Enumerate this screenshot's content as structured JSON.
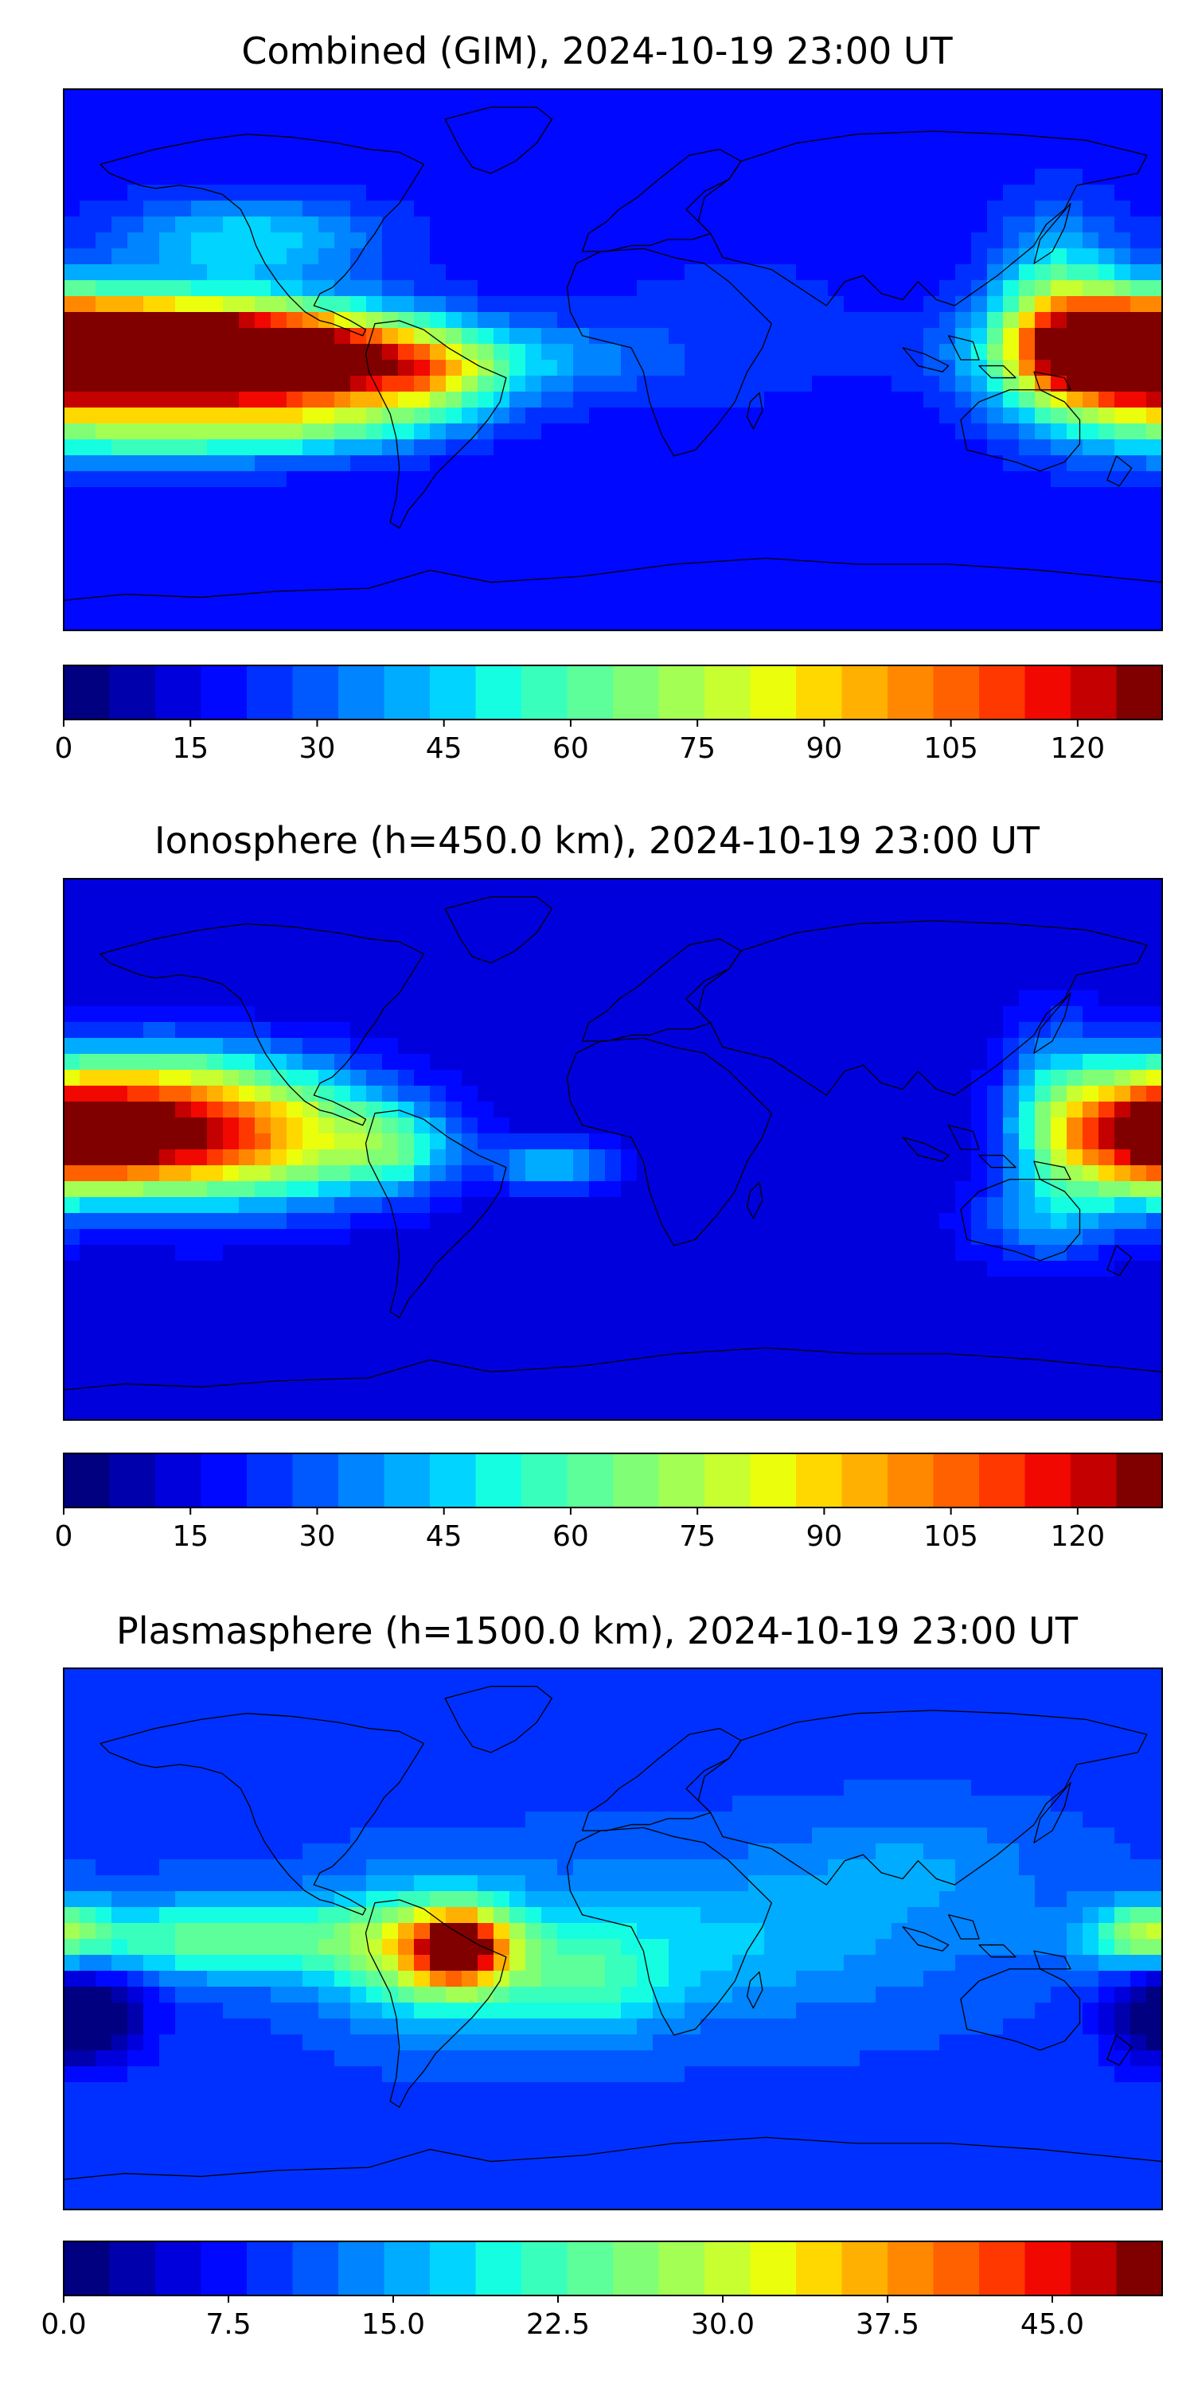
{
  "colormap": [
    "#000080",
    "#0000ad",
    "#0000dd",
    "#0008ff",
    "#0030ff",
    "#0058ff",
    "#0084ff",
    "#00acff",
    "#00d4ff",
    "#15fee1",
    "#39ffbd",
    "#5cff9a",
    "#80ff76",
    "#a3ff53",
    "#c7ff30",
    "#ebff0c",
    "#ffd800",
    "#ffb000",
    "#ff8800",
    "#ff6000",
    "#ff3800",
    "#f10800",
    "#c40000",
    "#800000"
  ],
  "chart_data": [
    {
      "type": "contour-map",
      "title": "Combined (GIM), 2024-10-19 23:00 UT",
      "colorbar": {
        "range": [
          0,
          130
        ],
        "tick_values": [
          0,
          15,
          30,
          45,
          60,
          75,
          90,
          105,
          120
        ],
        "tick_labels": [
          "0",
          "15",
          "30",
          "45",
          "60",
          "75",
          "90",
          "105",
          "120"
        ]
      },
      "background_value": 18,
      "features": [
        {
          "lon": -160,
          "lat": 3,
          "value": 115,
          "sx": 40,
          "sy": 11
        },
        {
          "lon": -140,
          "lat": 0,
          "value": 100,
          "sx": 45,
          "sy": 12
        },
        {
          "lon": -100,
          "lat": 0,
          "value": 82,
          "sx": 30,
          "sy": 11
        },
        {
          "lon": -60,
          "lat": -5,
          "value": 60,
          "sx": 18,
          "sy": 10
        },
        {
          "lon": 170,
          "lat": 2,
          "value": 90,
          "sx": 22,
          "sy": 14
        },
        {
          "lon": 145,
          "lat": 15,
          "value": 58,
          "sx": 14,
          "sy": 22
        },
        {
          "lon": -120,
          "lat": 40,
          "value": 48,
          "sx": 30,
          "sy": 10
        },
        {
          "lon": -155,
          "lat": -25,
          "value": 50,
          "sx": 35,
          "sy": 8
        },
        {
          "lon": -95,
          "lat": -22,
          "value": 45,
          "sx": 28,
          "sy": 7
        },
        {
          "lon": -20,
          "lat": 0,
          "value": 35,
          "sx": 25,
          "sy": 9
        },
        {
          "lon": 40,
          "lat": 10,
          "value": 25,
          "sx": 30,
          "sy": 20
        }
      ]
    },
    {
      "type": "contour-map",
      "title": "Ionosphere  (h=450.0 km), 2024-10-19 23:00 UT",
      "colorbar": {
        "range": [
          0,
          130
        ],
        "tick_values": [
          0,
          15,
          30,
          45,
          60,
          75,
          90,
          105,
          120
        ],
        "tick_labels": [
          "0",
          "15",
          "30",
          "45",
          "60",
          "75",
          "90",
          "105",
          "120"
        ]
      },
      "background_value": 12,
      "features": [
        {
          "lon": -165,
          "lat": 5,
          "value": 86,
          "sx": 28,
          "sy": 12
        },
        {
          "lon": -140,
          "lat": 3,
          "value": 68,
          "sx": 30,
          "sy": 16
        },
        {
          "lon": -150,
          "lat": 25,
          "value": 40,
          "sx": 30,
          "sy": 10
        },
        {
          "lon": -100,
          "lat": 5,
          "value": 55,
          "sx": 25,
          "sy": 15
        },
        {
          "lon": -70,
          "lat": 0,
          "value": 42,
          "sx": 15,
          "sy": 10
        },
        {
          "lon": -20,
          "lat": -5,
          "value": 45,
          "sx": 14,
          "sy": 6
        },
        {
          "lon": 172,
          "lat": 5,
          "value": 75,
          "sx": 18,
          "sy": 15
        },
        {
          "lon": 145,
          "lat": 10,
          "value": 45,
          "sx": 12,
          "sy": 22
        },
        {
          "lon": 140,
          "lat": -25,
          "value": 30,
          "sx": 18,
          "sy": 10
        }
      ]
    },
    {
      "type": "contour-map",
      "title": "Plasmasphere (h=1500.0 km), 2024-10-19 23:00 UT",
      "colorbar": {
        "range": [
          0,
          50
        ],
        "tick_values": [
          0,
          7.5,
          15,
          22.5,
          30,
          37.5,
          45
        ],
        "tick_labels": [
          "0.0",
          "7.5",
          "15.0",
          "22.5",
          "30.0",
          "37.5",
          "45.0"
        ]
      },
      "background_value": 10,
      "features": [
        {
          "lon": -50,
          "lat": -3,
          "value": 40,
          "sx": 10,
          "sy": 8
        },
        {
          "lon": -60,
          "lat": -5,
          "value": 27,
          "sx": 22,
          "sy": 15
        },
        {
          "lon": -130,
          "lat": 0,
          "value": 24,
          "sx": 45,
          "sy": 9
        },
        {
          "lon": 30,
          "lat": 0,
          "value": 17,
          "sx": 55,
          "sy": 18
        },
        {
          "lon": -10,
          "lat": -15,
          "value": 19,
          "sx": 20,
          "sy": 12
        },
        {
          "lon": 175,
          "lat": 2,
          "value": 24,
          "sx": 12,
          "sy": 7
        },
        {
          "lon": 100,
          "lat": 25,
          "value": 14,
          "sx": 30,
          "sy": 12
        },
        {
          "lon": -175,
          "lat": -25,
          "value": -4,
          "sx": 15,
          "sy": 12
        }
      ]
    }
  ]
}
